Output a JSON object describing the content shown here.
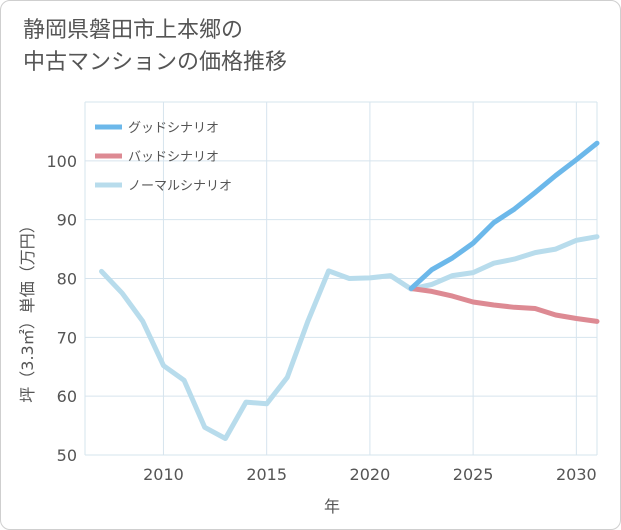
{
  "chart_data": {
    "type": "line",
    "title": [
      "静岡県磐田市上本郷の",
      "中古マンションの価格推移"
    ],
    "xlabel": "年",
    "ylabel": "坪（3.3㎡）単価（万円）",
    "xlim": [
      2006.2,
      2031
    ],
    "ylim": [
      50,
      110
    ],
    "xticks": [
      2010,
      2015,
      2020,
      2025,
      2030
    ],
    "yticks": [
      50,
      60,
      70,
      80,
      90,
      100
    ],
    "grid": true,
    "legend_position": "top-left",
    "series": [
      {
        "name": "グッドシナリオ",
        "color": "#6cb8ea",
        "x": [
          2022,
          2023,
          2024,
          2025,
          2026,
          2027,
          2028,
          2029,
          2030,
          2031
        ],
        "values": [
          78.3,
          81.5,
          83.5,
          86.0,
          89.5,
          91.8,
          94.6,
          97.5,
          100.2,
          103.0
        ]
      },
      {
        "name": "バッドシナリオ",
        "color": "#dd8a93",
        "x": [
          2022,
          2023,
          2024,
          2025,
          2026,
          2027,
          2028,
          2029,
          2030,
          2031
        ],
        "values": [
          78.3,
          77.8,
          77.0,
          76.0,
          75.5,
          75.1,
          74.9,
          73.8,
          73.2,
          72.7
        ]
      },
      {
        "name": "ノーマルシナリオ",
        "color": "#b8dcec",
        "x": [
          2007,
          2008,
          2009,
          2010,
          2011,
          2012,
          2013,
          2014,
          2015,
          2016,
          2017,
          2018,
          2019,
          2020,
          2021,
          2022,
          2023,
          2024,
          2025,
          2026,
          2027,
          2028,
          2029,
          2030,
          2031
        ],
        "values": [
          81.2,
          77.5,
          72.7,
          65.2,
          62.7,
          54.7,
          52.8,
          59.0,
          58.7,
          63.2,
          72.8,
          81.3,
          80.0,
          80.1,
          80.5,
          78.2,
          79.0,
          80.5,
          81.0,
          82.6,
          83.3,
          84.4,
          85.0,
          86.5,
          87.1
        ]
      }
    ]
  }
}
